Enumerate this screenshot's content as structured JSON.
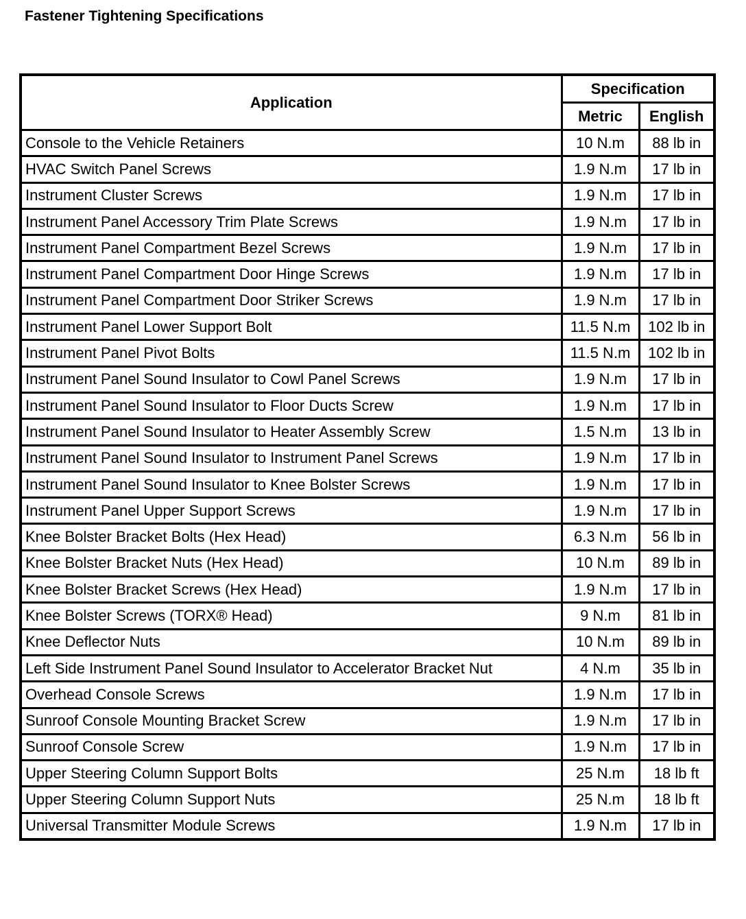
{
  "title": "Fastener Tightening Specifications",
  "table": {
    "headers": {
      "application": "Application",
      "specification": "Specification",
      "metric": "Metric",
      "english": "English"
    },
    "rows": [
      [
        "Console to the Vehicle Retainers",
        "10 N.m",
        "88 lb in"
      ],
      [
        "HVAC Switch Panel Screws",
        "1.9 N.m",
        "17 lb in"
      ],
      [
        "Instrument Cluster Screws",
        "1.9 N.m",
        "17 lb in"
      ],
      [
        "Instrument Panel Accessory Trim Plate Screws",
        "1.9 N.m",
        "17 lb in"
      ],
      [
        "Instrument Panel Compartment Bezel Screws",
        "1.9 N.m",
        "17 lb in"
      ],
      [
        "Instrument Panel Compartment Door Hinge Screws",
        "1.9 N.m",
        "17 lb in"
      ],
      [
        "Instrument Panel Compartment Door Striker Screws",
        "1.9 N.m",
        "17 lb in"
      ],
      [
        "Instrument Panel Lower Support Bolt",
        "11.5 N.m",
        "102 lb in"
      ],
      [
        "Instrument Panel Pivot Bolts",
        "11.5 N.m",
        "102 lb in"
      ],
      [
        "Instrument Panel Sound Insulator to Cowl Panel Screws",
        "1.9 N.m",
        "17 lb in"
      ],
      [
        "Instrument Panel Sound Insulator to Floor Ducts Screw",
        "1.9 N.m",
        "17 lb in"
      ],
      [
        "Instrument Panel Sound Insulator to Heater Assembly Screw",
        "1.5 N.m",
        "13 lb in"
      ],
      [
        "Instrument Panel Sound Insulator to Instrument Panel Screws",
        "1.9 N.m",
        "17 lb in"
      ],
      [
        "Instrument Panel Sound Insulator to Knee Bolster Screws",
        "1.9 N.m",
        "17 lb in"
      ],
      [
        "Instrument Panel Upper Support Screws",
        "1.9 N.m",
        "17 lb in"
      ],
      [
        "Knee Bolster Bracket Bolts (Hex Head)",
        "6.3 N.m",
        "56 lb in"
      ],
      [
        "Knee Bolster Bracket Nuts (Hex Head)",
        "10 N.m",
        "89 lb in"
      ],
      [
        "Knee Bolster Bracket Screws (Hex Head)",
        "1.9 N.m",
        "17 lb in"
      ],
      [
        "Knee Bolster Screws (TORX® Head)",
        "9 N.m",
        "81 lb in"
      ],
      [
        "Knee Deflector Nuts",
        "10 N.m",
        "89 lb in"
      ],
      [
        "Left Side Instrument Panel Sound Insulator to Accelerator Bracket Nut",
        "4 N.m",
        "35 lb in"
      ],
      [
        "Overhead Console Screws",
        "1.9 N.m",
        "17 lb in"
      ],
      [
        "Sunroof Console Mounting Bracket Screw",
        "1.9 N.m",
        "17 lb in"
      ],
      [
        "Sunroof Console Screw",
        "1.9 N.m",
        "17 lb in"
      ],
      [
        "Upper Steering Column Support Bolts",
        "25 N.m",
        "18 lb ft"
      ],
      [
        "Upper Steering Column Support Nuts",
        "25 N.m",
        "18 lb ft"
      ],
      [
        "Universal Transmitter Module Screws",
        "1.9 N.m",
        "17 lb in"
      ]
    ]
  }
}
